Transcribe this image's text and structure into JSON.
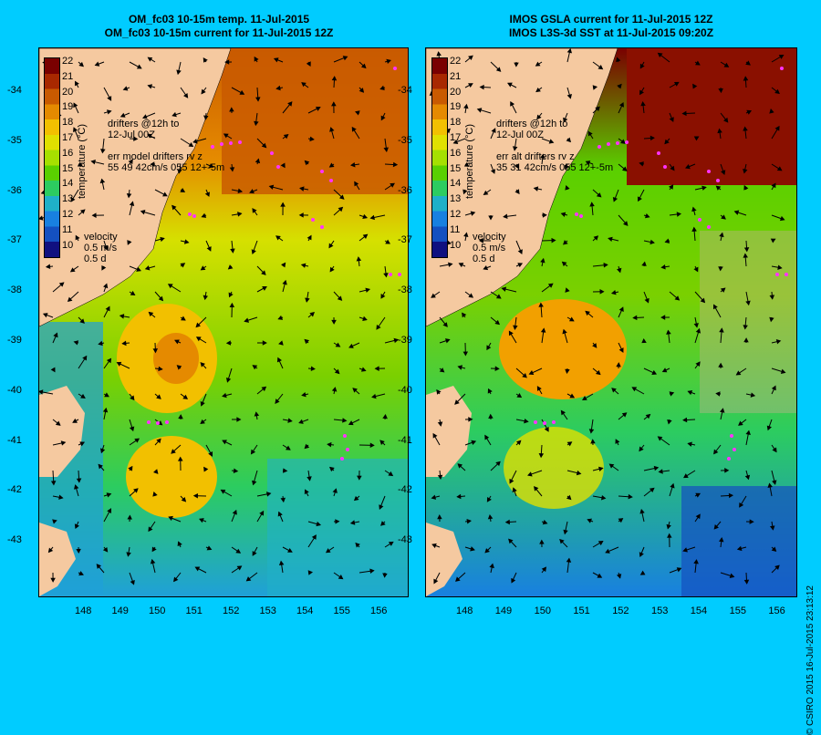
{
  "left_panel": {
    "title_line1": "OM_fc03 10-15m temp. 11-Jul-2015",
    "title_line2": "OM_fc03 10-15m current for 11-Jul-2015 12Z",
    "drifters_line1": "drifters @12h to",
    "drifters_line2": "12-Jul 00Z",
    "err_line1": "err model drifters rv z",
    "err_line2": "55 49 42cm/s 055 12+-5m",
    "velocity_label": "velocity",
    "velocity_scale": "0.5 m/s",
    "velocity_time": "0.5 d"
  },
  "right_panel": {
    "title_line1": "IMOS GSLA current for 11-Jul-2015 12Z",
    "title_line2": "IMOS L3S-3d SST at 11-Jul-2015 09:20Z",
    "drifters_line1": "drifters @12h to",
    "drifters_line2": "12-Jul 00Z",
    "err_line1": "err alt drifters rv z",
    "err_line2": "35 31 42cm/s 055 12+-5m",
    "velocity_label": "velocity",
    "velocity_scale": "0.5 m/s",
    "velocity_time": "0.5 d"
  },
  "colorbar": {
    "title": "temperature (°C)",
    "labels": [
      "22",
      "21",
      "20",
      "19",
      "18",
      "17",
      "16",
      "15",
      "14",
      "13",
      "12",
      "11",
      "10"
    ],
    "colors": [
      "#7a0000",
      "#a82800",
      "#c95a00",
      "#e58a00",
      "#f2c000",
      "#e0e000",
      "#a6e000",
      "#5ad000",
      "#2ccc60",
      "#1fb0c8",
      "#1880e0",
      "#1450c0",
      "#101080"
    ]
  },
  "y_ticks": [
    "-34",
    "-35",
    "-36",
    "-37",
    "-38",
    "-39",
    "-40",
    "-41",
    "-42",
    "-43"
  ],
  "x_ticks": [
    "148",
    "149",
    "150",
    "151",
    "152",
    "153",
    "154",
    "155",
    "156"
  ],
  "footer": "© CSIRO 2015   16-Jul-2015 23:13:12",
  "colors": {
    "background": "#00ccff",
    "land": "#f5c9a0",
    "arrow": "#000000",
    "drifter": "#ff33ff"
  }
}
